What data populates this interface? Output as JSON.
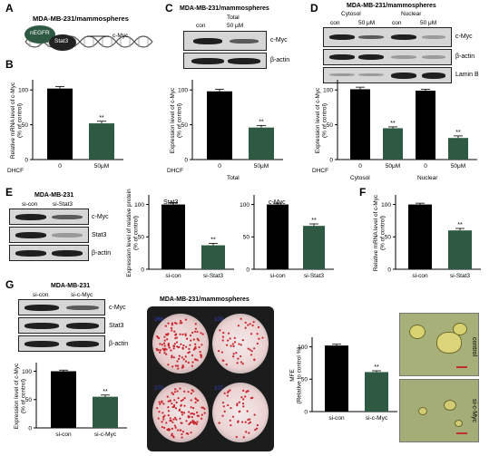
{
  "panels": {
    "A": {
      "letter": "A",
      "title": "MDA-MB-231/mammospheres",
      "protein1": "nEGFR",
      "protein2": "Stat3",
      "gene": "c-Myc"
    },
    "B": {
      "letter": "B",
      "ylabel": "Relative mRNA level of c-Myc (% of control)",
      "xprefix": "DHCF",
      "significance": "**"
    },
    "C": {
      "letter": "C",
      "title": "MDA-MB-231/mammospheres",
      "group": "Total",
      "lanes": [
        "con",
        "50 μM"
      ],
      "blots": [
        "c-Myc",
        "β-actin"
      ],
      "ylabel": "Expression level of c-Myc (% of control)",
      "xprefix": "DHCF",
      "group_label": "Total",
      "significance": "**"
    },
    "D": {
      "letter": "D",
      "title": "MDA-MB-231/mammospheres",
      "groups": [
        "Cytosol",
        "Nuclear"
      ],
      "lanes": [
        "con",
        "50 μM",
        "con",
        "50 μM"
      ],
      "blots": [
        "c-Myc",
        "β-actin",
        "Lamin B"
      ],
      "ylabel": "Expression level of c-Myc (% of control)",
      "xprefix": "DHCF",
      "group_labels": [
        "Cytosol",
        "Nuclear"
      ],
      "significance": "**"
    },
    "E": {
      "letter": "E",
      "title": "MDA-MB-231",
      "lanes": [
        "si-con",
        "si-Stat3"
      ],
      "blots": [
        "c-Myc",
        "Stat3",
        "β-actin"
      ],
      "ylabel": "Expression level of relative protein (% of control)",
      "significance": "**"
    },
    "F": {
      "letter": "F",
      "ylabel": "Relative mRNA level of c-Myc (% of control)",
      "significance": "**"
    },
    "G": {
      "letter": "G",
      "title": "MDA-MB-231",
      "lanes": [
        "si-con",
        "si-c-Myc"
      ],
      "blots": [
        "c-Myc",
        "Stat3",
        "β-actin"
      ],
      "ylabel": "Expression level of c-Myc (% of control)",
      "plate_title": "MDA-MB-231/mammospheres",
      "well_counts": [
        "266",
        "109",
        "270",
        "107"
      ],
      "mfe_ylabel": "MFE (Relative to control %)",
      "photo_labels": [
        "control",
        "si-c-Myc"
      ],
      "significance": "**"
    }
  },
  "chart_data": [
    {
      "id": "B",
      "type": "bar",
      "categories": [
        "0",
        "50μM"
      ],
      "values": [
        102,
        52
      ],
      "errors": [
        3,
        3
      ],
      "colors": [
        "#000000",
        "#2e5a43"
      ],
      "ylim": [
        0,
        100
      ],
      "yticks": [
        "0",
        "50",
        "100"
      ],
      "ylabel": "Relative mRNA level of c-Myc (% of control)"
    },
    {
      "id": "C",
      "type": "bar",
      "categories": [
        "0",
        "50μM"
      ],
      "values": [
        98,
        46
      ],
      "errors": [
        3,
        3
      ],
      "colors": [
        "#000000",
        "#2e5a43"
      ],
      "ylim": [
        0,
        100
      ],
      "yticks": [
        "0",
        "50",
        "100"
      ],
      "ylabel": "Expression level of c-Myc (% of control)"
    },
    {
      "id": "D",
      "type": "bar",
      "categories": [
        "0",
        "50μM",
        "0",
        "50μM"
      ],
      "values": [
        101,
        45,
        99,
        31
      ],
      "errors": [
        3,
        2,
        2,
        3
      ],
      "colors": [
        "#000000",
        "#2e5a43",
        "#000000",
        "#2e5a43"
      ],
      "ylim": [
        0,
        100
      ],
      "yticks": [
        "0",
        "50",
        "100"
      ],
      "ylabel": "Expression level of c-Myc (% of control)"
    },
    {
      "id": "E1",
      "type": "bar",
      "title": "Stat3",
      "categories": [
        "si-con",
        "si-Stat3"
      ],
      "values": [
        100,
        37
      ],
      "errors": [
        3,
        3
      ],
      "colors": [
        "#000000",
        "#2e5a43"
      ],
      "ylim": [
        0,
        100
      ],
      "yticks": [
        "0",
        "50",
        "100"
      ],
      "ylabel": "Expression level of relative protein (% of control)"
    },
    {
      "id": "E2",
      "type": "bar",
      "title": "c-Myc",
      "categories": [
        "si-con",
        "si-Stat3"
      ],
      "values": [
        100,
        67
      ],
      "errors": [
        2,
        3
      ],
      "colors": [
        "#000000",
        "#2e5a43"
      ],
      "ylim": [
        0,
        100
      ],
      "yticks": [
        "0",
        "50",
        "100"
      ]
    },
    {
      "id": "F",
      "type": "bar",
      "categories": [
        "si-con",
        "si-Stat3"
      ],
      "values": [
        100,
        60
      ],
      "errors": [
        2,
        3
      ],
      "colors": [
        "#000000",
        "#2e5a43"
      ],
      "ylim": [
        0,
        100
      ],
      "yticks": [
        "0",
        "50",
        "100"
      ],
      "ylabel": "Relative mRNA level of c-Myc (% of control)"
    },
    {
      "id": "G1",
      "type": "bar",
      "categories": [
        "si-con",
        "si-c-Myc"
      ],
      "values": [
        100,
        55
      ],
      "errors": [
        2,
        3
      ],
      "colors": [
        "#000000",
        "#2e5a43"
      ],
      "ylim": [
        0,
        100
      ],
      "yticks": [
        "0",
        "50",
        "100"
      ],
      "ylabel": "Expression level of c-Myc (% of control)"
    },
    {
      "id": "G2",
      "type": "bar",
      "categories": [
        "si-con",
        "si-c-Myc"
      ],
      "values": [
        102,
        61
      ],
      "errors": [
        2,
        2
      ],
      "colors": [
        "#000000",
        "#2e5a43"
      ],
      "ylim": [
        0,
        100
      ],
      "yticks": [
        "0",
        "50",
        "100"
      ],
      "ylabel": "MFE (Relative to control %)"
    }
  ]
}
